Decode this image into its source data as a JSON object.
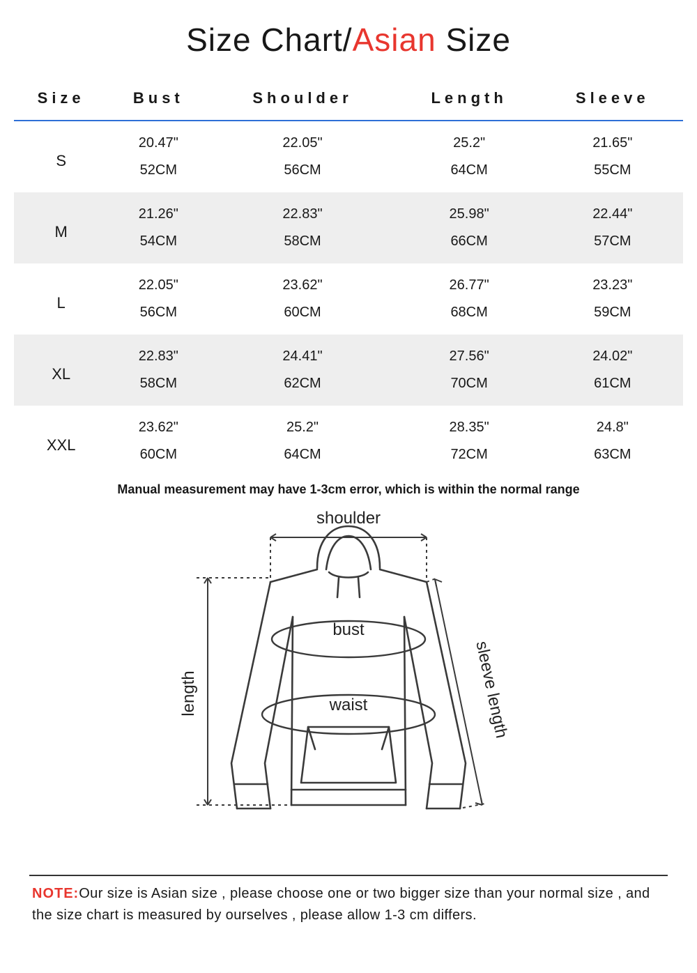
{
  "colors": {
    "text": "#181818",
    "accent": "#e8362e",
    "header_rule": "#2e6fd6",
    "row_alt_bg": "#eeeeee",
    "diagram_stroke": "#3a3a3a"
  },
  "title": {
    "prefix": "Size Chart/",
    "accent": "Asian",
    "suffix": " Size"
  },
  "table": {
    "columns": [
      "Size",
      "Bust",
      "Shoulder",
      "Length",
      "Sleeve"
    ],
    "rows": [
      {
        "size": "S",
        "bust_in": "20.47\"",
        "bust_cm": "52CM",
        "shoulder_in": "22.05\"",
        "shoulder_cm": "56CM",
        "length_in": "25.2\"",
        "length_cm": "64CM",
        "sleeve_in": "21.65\"",
        "sleeve_cm": "55CM"
      },
      {
        "size": "M",
        "bust_in": "21.26\"",
        "bust_cm": "54CM",
        "shoulder_in": "22.83\"",
        "shoulder_cm": "58CM",
        "length_in": "25.98\"",
        "length_cm": "66CM",
        "sleeve_in": "22.44\"",
        "sleeve_cm": "57CM"
      },
      {
        "size": "L",
        "bust_in": "22.05\"",
        "bust_cm": "56CM",
        "shoulder_in": "23.62\"",
        "shoulder_cm": "60CM",
        "length_in": "26.77\"",
        "length_cm": "68CM",
        "sleeve_in": "23.23\"",
        "sleeve_cm": "59CM"
      },
      {
        "size": "XL",
        "bust_in": "22.83\"",
        "bust_cm": "58CM",
        "shoulder_in": "24.41\"",
        "shoulder_cm": "62CM",
        "length_in": "27.56\"",
        "length_cm": "70CM",
        "sleeve_in": "24.02\"",
        "sleeve_cm": "61CM"
      },
      {
        "size": "XXL",
        "bust_in": "23.62\"",
        "bust_cm": "60CM",
        "shoulder_in": "25.2\"",
        "shoulder_cm": "64CM",
        "length_in": "28.35\"",
        "length_cm": "72CM",
        "sleeve_in": "24.8\"",
        "sleeve_cm": "63CM"
      }
    ]
  },
  "measurement_note": "Manual measurement may have 1-3cm error, which is within the normal range",
  "diagram_labels": {
    "shoulder": "shoulder",
    "bust": "bust",
    "waist": "waist",
    "length": "length",
    "sleeve": "sleeve length"
  },
  "footer": {
    "label": "NOTE:",
    "text": "Our size is Asian size , please choose one or two bigger size than your normal size , and the size chart is measured by ourselves , please allow 1-3 cm differs."
  }
}
